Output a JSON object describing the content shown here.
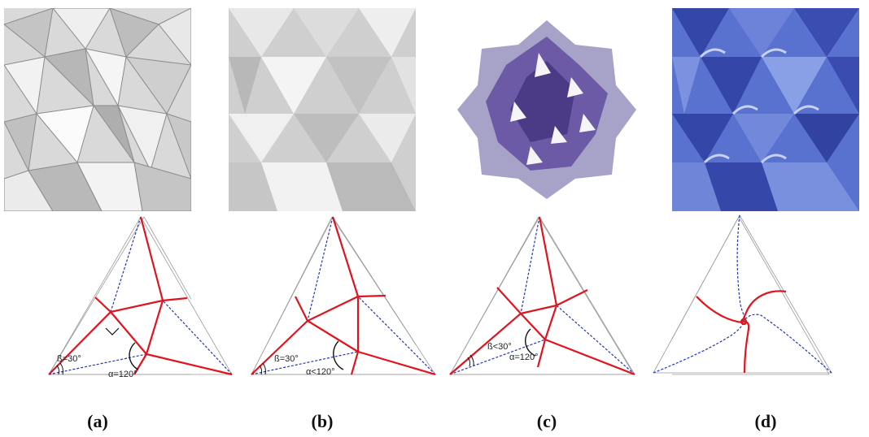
{
  "panels": [
    {
      "caption": "(a)",
      "image": "origami-tessellation-render-gray",
      "beta": "ß=30°",
      "alpha": "α=120°"
    },
    {
      "caption": "(b)",
      "image": "origami-tessellation-photo-white",
      "beta": "ß=30°",
      "alpha": "α<120°"
    },
    {
      "caption": "(c)",
      "image": "origami-flower-photo-purple",
      "beta": "ß<30°",
      "alpha": "α=120°"
    },
    {
      "caption": "(d)",
      "image": "origami-twist-tessellation-photo-blue"
    }
  ],
  "colors": {
    "mountain_fold": "#e0141e",
    "valley_fold": "#2233bb",
    "triangle_outline": "#9a9a9a"
  }
}
